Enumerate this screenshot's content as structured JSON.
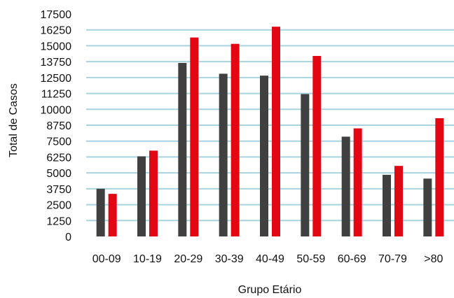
{
  "chart_data": {
    "type": "bar",
    "xlabel": "Grupo Etário",
    "ylabel": "Total de Casos",
    "categories": [
      "00-09",
      "10-19",
      "20-29",
      "30-39",
      "40-49",
      "50-59",
      "60-69",
      "70-79",
      ">80"
    ],
    "y_ticks": [
      0,
      1250,
      2500,
      3750,
      5000,
      6250,
      7500,
      8750,
      10000,
      11250,
      12500,
      13750,
      15000,
      16250,
      17500
    ],
    "ylim": [
      0,
      17500
    ],
    "grid": true,
    "legend": "none",
    "series": [
      {
        "color": "#404040",
        "values": [
          3750,
          6300,
          13650,
          12800,
          12650,
          11200,
          7850,
          4850,
          4550
        ]
      },
      {
        "color": "#e30613",
        "values": [
          3350,
          6750,
          15650,
          15150,
          16500,
          14200,
          8500,
          5550,
          9300
        ]
      }
    ],
    "gridline_color": "#a8d4df"
  }
}
